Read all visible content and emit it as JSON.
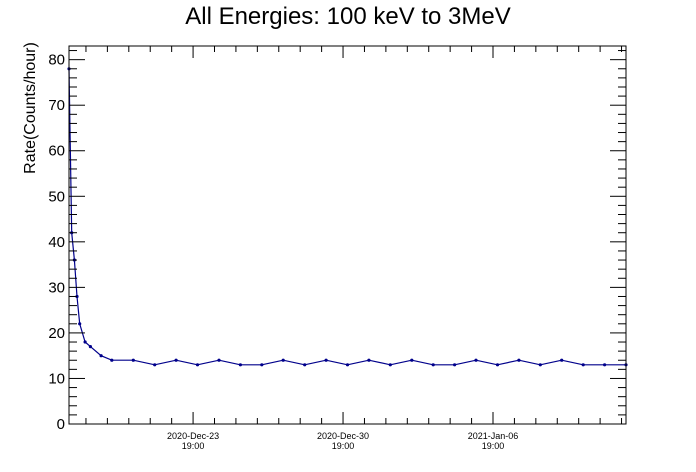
{
  "chart_data": {
    "type": "line",
    "title": "All Energies:  100 keV to 3MeV",
    "ylabel": "Rate(Counts/hour)",
    "xlabel": "",
    "ylim": [
      0,
      83
    ],
    "yticks": [
      0,
      10,
      20,
      30,
      40,
      50,
      60,
      70,
      80
    ],
    "xlim": [
      "2020-Dec-18 00:00",
      "2021-Jan-13 00:00"
    ],
    "xticks": [
      {
        "date": "2020-Dec-23 19:00",
        "line1": "2020-Dec-23",
        "line2": "19:00"
      },
      {
        "date": "2020-Dec-30 19:00",
        "line1": "2020-Dec-30",
        "line2": "19:00"
      },
      {
        "date": "2021-Jan-06 19:00",
        "line1": "2021-Jan-06",
        "line2": "19:00"
      }
    ],
    "grid": false,
    "color": "#00008b",
    "series": [
      {
        "x": [
          "2020-Dec-18 00:00",
          "2020-Dec-18 03:00",
          "2020-Dec-18 06:00",
          "2020-Dec-18 09:00",
          "2020-Dec-18 12:00",
          "2020-Dec-18 18:00",
          "2020-Dec-19 00:00",
          "2020-Dec-19 12:00",
          "2020-Dec-20 00:00",
          "2020-Dec-21 00:00",
          "2020-Dec-22 00:00",
          "2020-Dec-23 00:00",
          "2020-Dec-24 00:00",
          "2020-Dec-25 00:00",
          "2020-Dec-26 00:00",
          "2020-Dec-27 00:00",
          "2020-Dec-28 00:00",
          "2020-Dec-29 00:00",
          "2020-Dec-30 00:00",
          "2020-Dec-31 00:00",
          "2021-Jan-01 00:00",
          "2021-Jan-02 00:00",
          "2021-Jan-03 00:00",
          "2021-Jan-04 00:00",
          "2021-Jan-05 00:00",
          "2021-Jan-06 00:00",
          "2021-Jan-07 00:00",
          "2021-Jan-08 00:00",
          "2021-Jan-09 00:00",
          "2021-Jan-10 00:00",
          "2021-Jan-11 00:00",
          "2021-Jan-12 00:00",
          "2021-Jan-13 00:00"
        ],
        "y": [
          78,
          42,
          36,
          28,
          22,
          18,
          17,
          15,
          14,
          14,
          13,
          14,
          13,
          14,
          13,
          13,
          14,
          13,
          14,
          13,
          14,
          13,
          14,
          13,
          13,
          14,
          13,
          14,
          13,
          14,
          13,
          13,
          13
        ]
      }
    ]
  }
}
